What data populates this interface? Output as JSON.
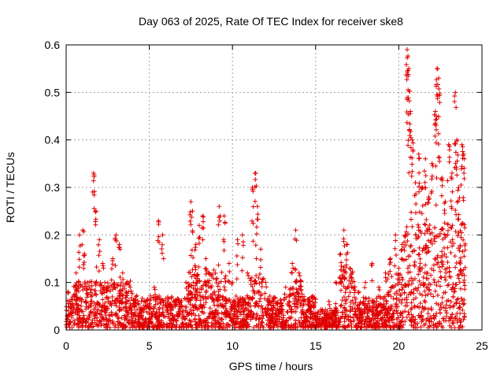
{
  "chart_data": {
    "type": "scatter",
    "title": "Day 063 of 2025, Rate Of TEC Index for receiver ske8",
    "xlabel": "GPS time / hours",
    "ylabel": "ROTI / TECUs",
    "xlim": [
      0,
      25
    ],
    "ylim": [
      0,
      0.6
    ],
    "xticks": [
      0,
      5,
      10,
      15,
      20,
      25
    ],
    "xtick_labels": [
      "0",
      "5",
      "10",
      "15",
      "20",
      "25"
    ],
    "yticks": [
      0,
      0.1,
      0.2,
      0.3,
      0.4,
      0.5,
      0.6
    ],
    "ytick_labels": [
      "0",
      "0.1",
      "0.2",
      "0.3",
      "0.4",
      "0.5",
      "0.6"
    ],
    "grid": true,
    "marker": "+",
    "color": "#e00000",
    "series": [
      {
        "name": "ROTI",
        "x": [
          0.1,
          0.3,
          0.6,
          0.8,
          1.0,
          1.1,
          1.3,
          1.5,
          1.65,
          1.8,
          2.0,
          2.2,
          2.5,
          2.8,
          3.0,
          3.2,
          3.4,
          3.6,
          3.9,
          4.2,
          4.5,
          4.8,
          5.0,
          5.3,
          5.55,
          5.8,
          6.1,
          6.4,
          6.8,
          7.2,
          7.5,
          7.6,
          7.8,
          8.0,
          8.2,
          8.4,
          8.6,
          8.9,
          9.2,
          9.5,
          9.8,
          10.0,
          10.3,
          10.6,
          10.9,
          11.2,
          11.4,
          11.5,
          11.7,
          12.0,
          12.4,
          12.8,
          13.2,
          13.6,
          13.8,
          14.0,
          14.3,
          14.6,
          15.0,
          15.4,
          15.8,
          16.2,
          16.5,
          16.7,
          16.9,
          17.2,
          17.6,
          18.0,
          18.4,
          18.8,
          19.2,
          19.5,
          19.8,
          20.0,
          20.2,
          20.4,
          20.5,
          20.6,
          20.7,
          20.8,
          21.0,
          21.2,
          21.4,
          21.6,
          21.8,
          22.0,
          22.2,
          22.3,
          22.4,
          22.6,
          22.8,
          23.0,
          23.2,
          23.4,
          23.5,
          23.6,
          23.8,
          23.9
        ],
        "y": [
          0.08,
          0.05,
          0.12,
          0.2,
          0.21,
          0.16,
          0.1,
          0.07,
          0.33,
          0.25,
          0.19,
          0.14,
          0.09,
          0.15,
          0.2,
          0.18,
          0.12,
          0.08,
          0.05,
          0.07,
          0.04,
          0.06,
          0.05,
          0.09,
          0.23,
          0.2,
          0.06,
          0.03,
          0.05,
          0.1,
          0.27,
          0.25,
          0.18,
          0.22,
          0.24,
          0.15,
          0.12,
          0.08,
          0.26,
          0.24,
          0.14,
          0.1,
          0.19,
          0.2,
          0.12,
          0.3,
          0.33,
          0.26,
          0.17,
          0.1,
          0.06,
          0.04,
          0.09,
          0.14,
          0.21,
          0.12,
          0.07,
          0.05,
          0.03,
          0.04,
          0.06,
          0.1,
          0.16,
          0.21,
          0.18,
          0.12,
          0.08,
          0.1,
          0.14,
          0.09,
          0.12,
          0.15,
          0.2,
          0.13,
          0.18,
          0.2,
          0.59,
          0.55,
          0.46,
          0.4,
          0.31,
          0.37,
          0.3,
          0.36,
          0.28,
          0.35,
          0.46,
          0.55,
          0.53,
          0.32,
          0.27,
          0.39,
          0.33,
          0.5,
          0.4,
          0.3,
          0.39,
          0.37
        ]
      }
    ],
    "background_cloud": {
      "description_range": "dense low-level values",
      "x_range": [
        0,
        24
      ],
      "typical_y_range": [
        0,
        0.1
      ]
    }
  }
}
